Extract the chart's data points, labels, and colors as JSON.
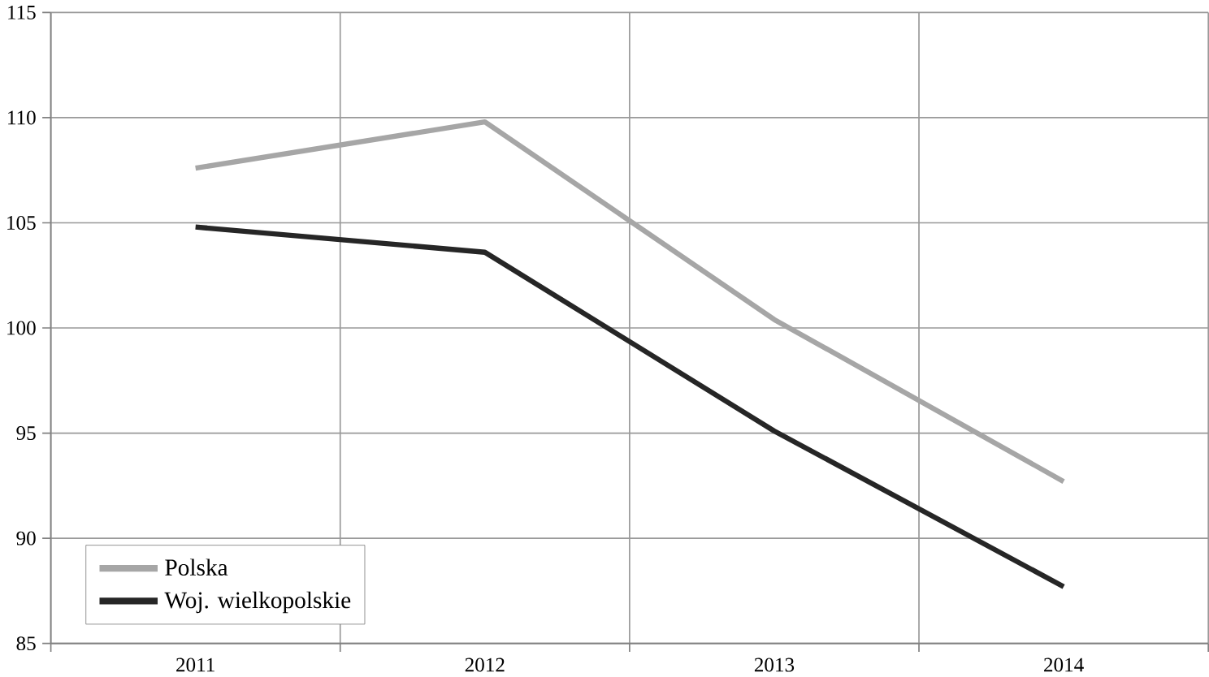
{
  "chart_data": {
    "type": "line",
    "categories": [
      "2011",
      "2012",
      "2013",
      "2014"
    ],
    "series": [
      {
        "name": "Polska",
        "color": "#a6a6a6",
        "values": [
          107.6,
          109.8,
          100.4,
          92.7
        ]
      },
      {
        "name": "Woj. wielkopolskie",
        "color": "#262626",
        "values": [
          104.8,
          103.6,
          95.1,
          87.7
        ]
      }
    ],
    "ylim": [
      85,
      115
    ],
    "yticks": [
      85,
      90,
      95,
      100,
      105,
      110,
      115
    ],
    "grid": true,
    "legend": "bottom left",
    "marker": "none",
    "line_style": "solid"
  }
}
